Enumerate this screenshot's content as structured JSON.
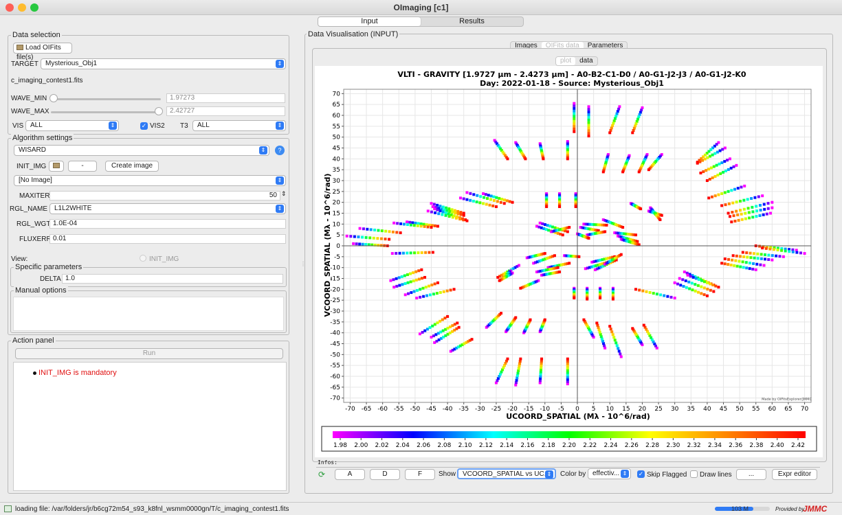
{
  "window": {
    "title": "OImaging [c1]"
  },
  "main_tabs": [
    {
      "label": "Input"
    },
    {
      "label": "Results"
    }
  ],
  "data_selection": {
    "title": "Data selection",
    "load_button": "Load OIFits file(s)",
    "target_label": "TARGET",
    "target_value": "Mysterious_Obj1",
    "file_name": "c_imaging_contest1.fits",
    "wave_min_label": "WAVE_MIN",
    "wave_min_value": "1.97273",
    "wave_max_label": "WAVE_MAX",
    "wave_max_value": "2.42727",
    "vis_label": "VIS",
    "vis_value": "ALL",
    "vis2_label": "VIS2",
    "t3_label": "T3",
    "t3_value": "ALL"
  },
  "algorithm": {
    "title": "Algorithm settings",
    "algo_value": "WISARD",
    "init_img_label": "INIT_IMG",
    "init_img_button": "-",
    "create_image_button": "Create image",
    "no_image": "[No Image]",
    "maxiter_label": "MAXITER",
    "maxiter_value": "50",
    "rgl_name_label": "RGL_NAME",
    "rgl_name_value": "L1L2WHITE",
    "rgl_wgt_label": "RGL_WGT",
    "rgl_wgt_value": "1.0E-04",
    "fluxerr_label": "FLUXERR",
    "fluxerr_value": "0.01",
    "view_label": "View:",
    "view_option": "INIT_IMG",
    "specific_title": "Specific parameters",
    "delta_label": "DELTA",
    "delta_value": "1.0",
    "manual_title": "Manual options"
  },
  "action": {
    "title": "Action panel",
    "run_button": "Run",
    "message": "INIT_IMG is mandatory",
    "message_color": "#e01010"
  },
  "viz": {
    "title": "Data Visualisation (INPUT)",
    "tabs": [
      {
        "label": "Images"
      },
      {
        "label": "OIFits data"
      },
      {
        "label": "Parameters"
      }
    ],
    "subtabs": [
      {
        "label": "plot"
      },
      {
        "label": "data"
      }
    ],
    "infos_label": "Infos:",
    "buttons": {
      "a": "A",
      "d": "D",
      "f": "F",
      "show_label": "Show",
      "show_value": "VCOORD_SPATIAL vs UC...",
      "color_by_label": "Color by",
      "color_by_value": "effectiv...",
      "skip_flagged": "Skip Flagged",
      "draw_lines": "Draw lines",
      "more": "...",
      "expr_editor": "Expr editor"
    }
  },
  "chart_data": {
    "type": "scatter",
    "title": "VLTI - GRAVITY [1.9727 µm - 2.4273 µm] - A0-B2-C1-D0 / A0-G1-J2-J3 / A0-G1-J2-K0",
    "subtitle": "Day: 2022-01-18 - Source: Mysterious_Obj1",
    "xlabel": "UCOORD_SPATIAL (Mλ - 10^6/rad)",
    "ylabel": "VCOORD_SPATIAL (Mλ - 10^6/rad)",
    "xlim": [
      -72,
      72
    ],
    "ylim": [
      -72,
      72
    ],
    "xticks": [
      -70,
      -65,
      -60,
      -55,
      -50,
      -45,
      -40,
      -35,
      -30,
      -25,
      -20,
      -15,
      -10,
      -5,
      0,
      5,
      10,
      15,
      20,
      25,
      30,
      35,
      40,
      45,
      50,
      55,
      60,
      65,
      70
    ],
    "yticks": [
      70,
      65,
      60,
      55,
      50,
      45,
      40,
      35,
      30,
      25,
      20,
      15,
      10,
      5,
      0,
      -5,
      -10,
      -15,
      -20,
      -25,
      -30,
      -35,
      -40,
      -45,
      -50,
      -55,
      -60,
      -65,
      -70
    ],
    "grid": true,
    "credit": "Made by OIFitsExplorer/JMMC",
    "colorbar": {
      "min": 1.97273,
      "max": 2.42727,
      "ticks": [
        "1.98",
        "2.00",
        "2.02",
        "2.04",
        "2.06",
        "2.08",
        "2.10",
        "2.12",
        "2.14",
        "2.16",
        "2.18",
        "2.20",
        "2.22",
        "2.24",
        "2.26",
        "2.28",
        "2.30",
        "2.32",
        "2.34",
        "2.36",
        "2.38",
        "2.40",
        "2.42"
      ]
    },
    "tracks": [
      {
        "u0": -1.0,
        "v0": 65.5,
        "u1": -1.0,
        "v1": 52.5
      },
      {
        "u0": 3.5,
        "v0": 64.0,
        "u1": 3.5,
        "v1": 50.5
      },
      {
        "u0": 13.0,
        "v0": 64.0,
        "u1": 10.0,
        "v1": 52.0
      },
      {
        "u0": 20.0,
        "v0": 63.5,
        "u1": 17.0,
        "v1": 52.0
      },
      {
        "u0": -25.5,
        "v0": 48.5,
        "u1": -21.5,
        "v1": 40.0
      },
      {
        "u0": -19.0,
        "v0": 47.5,
        "u1": -16.0,
        "v1": 40.0
      },
      {
        "u0": -11.5,
        "v0": 47.0,
        "u1": -10.5,
        "v1": 40.0
      },
      {
        "u0": -3.0,
        "v0": 48.0,
        "u1": -3.0,
        "v1": 40.0
      },
      {
        "u0": 9.5,
        "v0": 42.0,
        "u1": 8.0,
        "v1": 34.0
      },
      {
        "u0": 16.0,
        "v0": 41.5,
        "u1": 14.0,
        "v1": 34.0
      },
      {
        "u0": 21.5,
        "v0": 42.0,
        "u1": 19.0,
        "v1": 34.0
      },
      {
        "u0": 26.0,
        "v0": 42.0,
        "u1": 22.0,
        "v1": 35.0
      },
      {
        "u0": 43.5,
        "v0": 47.5,
        "u1": 37.0,
        "v1": 38.5
      },
      {
        "u0": 45.5,
        "v0": 45.0,
        "u1": 37.0,
        "v1": 38.0
      },
      {
        "u0": 47.0,
        "v0": 40.0,
        "u1": 38.0,
        "v1": 33.5
      },
      {
        "u0": 49.0,
        "v0": 37.0,
        "u1": 40.0,
        "v1": 30.0
      },
      {
        "u0": 51.5,
        "v0": 27.5,
        "u1": 40.5,
        "v1": 22.0
      },
      {
        "u0": 57.0,
        "v0": 23.0,
        "u1": 44.5,
        "v1": 18.5
      },
      {
        "u0": 60.0,
        "v0": 20.0,
        "u1": 46.5,
        "v1": 15.0
      },
      {
        "u0": 60.0,
        "v0": 17.5,
        "u1": 47.0,
        "v1": 13.5
      },
      {
        "u0": 59.5,
        "v0": 15.0,
        "u1": 47.5,
        "v1": 11.0
      },
      {
        "u0": -29.0,
        "v0": 24.0,
        "u1": -20.0,
        "v1": 20.0
      },
      {
        "u0": -34.0,
        "v0": 24.5,
        "u1": -22.5,
        "v1": 19.5
      },
      {
        "u0": -36.0,
        "v0": 22.0,
        "u1": -25.0,
        "v1": 18.0
      },
      {
        "u0": -45.0,
        "v0": 19.5,
        "u1": -35.0,
        "v1": 15.0
      },
      {
        "u0": -44.5,
        "v0": 18.0,
        "u1": -35.0,
        "v1": 14.0
      },
      {
        "u0": -44.0,
        "v0": 17.0,
        "u1": -34.5,
        "v1": 12.0
      },
      {
        "u0": -46.0,
        "v0": 16.0,
        "u1": -34.0,
        "v1": 11.5
      },
      {
        "u0": -52.5,
        "v0": 11.0,
        "u1": -43.0,
        "v1": 9.0
      },
      {
        "u0": -56.5,
        "v0": 10.5,
        "u1": -45.0,
        "v1": 8.5
      },
      {
        "u0": -67.0,
        "v0": 8.0,
        "u1": -54.5,
        "v1": 6.0
      },
      {
        "u0": -71.0,
        "v0": 4.5,
        "u1": -58.0,
        "v1": 3.0
      },
      {
        "u0": -69.0,
        "v0": 1.0,
        "u1": -58.5,
        "v1": 0.0
      },
      {
        "u0": -57.0,
        "v0": -3.5,
        "u1": -44.5,
        "v1": -3.0
      },
      {
        "u0": -9.5,
        "v0": 24.0,
        "u1": -9.5,
        "v1": 18.0
      },
      {
        "u0": -5.5,
        "v0": 24.0,
        "u1": -5.5,
        "v1": 18.0
      },
      {
        "u0": -0.5,
        "v0": 24.0,
        "u1": -0.5,
        "v1": 18.0
      },
      {
        "u0": 16.5,
        "v0": 19.5,
        "u1": 19.5,
        "v1": 17.0
      },
      {
        "u0": 22.0,
        "v0": 16.0,
        "u1": 26.0,
        "v1": 14.0
      },
      {
        "u0": 22.5,
        "v0": 17.5,
        "u1": 25.5,
        "v1": 12.0
      },
      {
        "u0": -11.5,
        "v0": 10.5,
        "u1": -3.0,
        "v1": 6.5
      },
      {
        "u0": -12.5,
        "v0": 9.0,
        "u1": -4.5,
        "v1": 5.0
      },
      {
        "u0": -8.0,
        "v0": 6.5,
        "u1": -2.5,
        "v1": 8.5
      },
      {
        "u0": 2.0,
        "v0": 10.0,
        "u1": 9.0,
        "v1": 9.5
      },
      {
        "u0": 1.0,
        "v0": 8.5,
        "u1": 6.5,
        "v1": 7.0
      },
      {
        "u0": 3.0,
        "v0": 5.0,
        "u1": 8.5,
        "v1": 6.5
      },
      {
        "u0": 8.0,
        "v0": 12.0,
        "u1": 14.0,
        "v1": 8.5
      },
      {
        "u0": 11.5,
        "v0": 6.0,
        "u1": 18.0,
        "v1": 5.0
      },
      {
        "u0": 12.5,
        "v0": 4.5,
        "u1": 18.5,
        "v1": 2.0
      },
      {
        "u0": 13.5,
        "v0": 3.0,
        "u1": 19.0,
        "v1": 0.5
      },
      {
        "u0": 0.0,
        "v0": 5.5,
        "u1": 3.5,
        "v1": 3.5
      },
      {
        "u0": -15.5,
        "v0": -5.5,
        "u1": -10.0,
        "v1": -3.5
      },
      {
        "u0": -13.5,
        "v0": -8.0,
        "u1": -7.0,
        "v1": -4.5
      },
      {
        "u0": -9.0,
        "v0": -10.0,
        "u1": -2.5,
        "v1": -8.0
      },
      {
        "u0": -12.5,
        "v0": -12.0,
        "u1": -6.0,
        "v1": -10.0
      },
      {
        "u0": -11.0,
        "v0": -13.5,
        "u1": -5.5,
        "v1": -12.0
      },
      {
        "u0": -4.0,
        "v0": -4.5,
        "u1": 0.5,
        "v1": -5.0
      },
      {
        "u0": 4.5,
        "v0": -7.5,
        "u1": 11.5,
        "v1": -5.0
      },
      {
        "u0": 2.5,
        "v0": -10.5,
        "u1": 9.5,
        "v1": -7.5
      },
      {
        "u0": 5.5,
        "v0": -11.0,
        "u1": 12.0,
        "v1": -6.5
      },
      {
        "u0": 8.5,
        "v0": -8.5,
        "u1": 13.5,
        "v1": -4.0
      },
      {
        "u0": -18.0,
        "v0": -9.0,
        "u1": -24.5,
        "v1": -14.5
      },
      {
        "u0": -20.5,
        "v0": -11.5,
        "u1": -23.0,
        "v1": -15.0
      },
      {
        "u0": -20.0,
        "v0": -12.5,
        "u1": -24.0,
        "v1": -16.0
      },
      {
        "u0": -12.0,
        "v0": -16.0,
        "u1": -17.5,
        "v1": -19.5
      },
      {
        "u0": -1.0,
        "v0": -19.5,
        "u1": -1.0,
        "v1": -24.0
      },
      {
        "u0": 3.0,
        "v0": -19.5,
        "u1": 3.0,
        "v1": -24.5
      },
      {
        "u0": 7.0,
        "v0": -19.5,
        "u1": 7.0,
        "v1": -24.0
      },
      {
        "u0": 11.0,
        "v0": -19.5,
        "u1": 11.0,
        "v1": -24.5
      },
      {
        "u0": 30.0,
        "v0": -24.0,
        "u1": 18.0,
        "v1": -20.0
      },
      {
        "u0": 33.0,
        "v0": -12.0,
        "u1": 42.0,
        "v1": -18.0
      },
      {
        "u0": 31.5,
        "v0": -15.0,
        "u1": 42.0,
        "v1": -21.0
      },
      {
        "u0": 30.0,
        "v0": -17.0,
        "u1": 40.0,
        "v1": -23.0
      },
      {
        "u0": 34.0,
        "v0": -13.5,
        "u1": 43.5,
        "v1": -19.0
      },
      {
        "u0": 67.5,
        "v0": -2.0,
        "u1": 55.0,
        "v1": 0.0
      },
      {
        "u0": 70.0,
        "v0": -3.5,
        "u1": 57.0,
        "v1": -1.0
      },
      {
        "u0": 63.5,
        "v0": -5.0,
        "u1": 51.0,
        "v1": -3.0
      },
      {
        "u0": 60.0,
        "v0": -6.5,
        "u1": 48.0,
        "v1": -4.5
      },
      {
        "u0": 57.5,
        "v0": -9.0,
        "u1": 45.5,
        "v1": -6.0
      },
      {
        "u0": 55.0,
        "v0": -11.0,
        "u1": 44.5,
        "v1": -8.0
      },
      {
        "u0": -57.5,
        "v0": -16.0,
        "u1": -48.0,
        "v1": -11.0
      },
      {
        "u0": -56.5,
        "v0": -19.0,
        "u1": -47.0,
        "v1": -14.5
      },
      {
        "u0": -53.0,
        "v0": -22.5,
        "u1": -43.0,
        "v1": -17.0
      },
      {
        "u0": -49.5,
        "v0": -24.0,
        "u1": -38.0,
        "v1": -20.0
      },
      {
        "u0": -48.5,
        "v0": -40.5,
        "u1": -40.0,
        "v1": -32.5
      },
      {
        "u0": -45.0,
        "v0": -42.0,
        "u1": -37.0,
        "v1": -35.5
      },
      {
        "u0": -44.0,
        "v0": -44.5,
        "u1": -36.5,
        "v1": -37.5
      },
      {
        "u0": -39.0,
        "v0": -48.5,
        "u1": -32.5,
        "v1": -43.0
      },
      {
        "u0": -28.0,
        "v0": -37.5,
        "u1": -23.5,
        "v1": -31.0
      },
      {
        "u0": -22.0,
        "v0": -39.5,
        "u1": -19.0,
        "v1": -33.0
      },
      {
        "u0": -16.5,
        "v0": -40.0,
        "u1": -14.5,
        "v1": -34.0
      },
      {
        "u0": -11.5,
        "v0": -39.5,
        "u1": -10.0,
        "v1": -34.0
      },
      {
        "u0": 5.0,
        "v0": -42.0,
        "u1": 2.0,
        "v1": -34.0
      },
      {
        "u0": 8.5,
        "v0": -47.0,
        "u1": 6.0,
        "v1": -35.5
      },
      {
        "u0": 13.5,
        "v0": -51.0,
        "u1": 10.0,
        "v1": -37.0
      },
      {
        "u0": 20.0,
        "v0": -45.5,
        "u1": 17.0,
        "v1": -38.0
      },
      {
        "u0": 24.5,
        "v0": -47.0,
        "u1": 20.5,
        "v1": -36.5
      },
      {
        "u0": -25.0,
        "v0": -63.0,
        "u1": -21.5,
        "v1": -52.0
      },
      {
        "u0": -19.0,
        "v0": -64.0,
        "u1": -17.5,
        "v1": -52.0
      },
      {
        "u0": -11.5,
        "v0": -63.0,
        "u1": -11.0,
        "v1": -52.0
      },
      {
        "u0": -3.0,
        "v0": -63.5,
        "u1": -3.0,
        "v1": -52.0
      }
    ]
  }
}
